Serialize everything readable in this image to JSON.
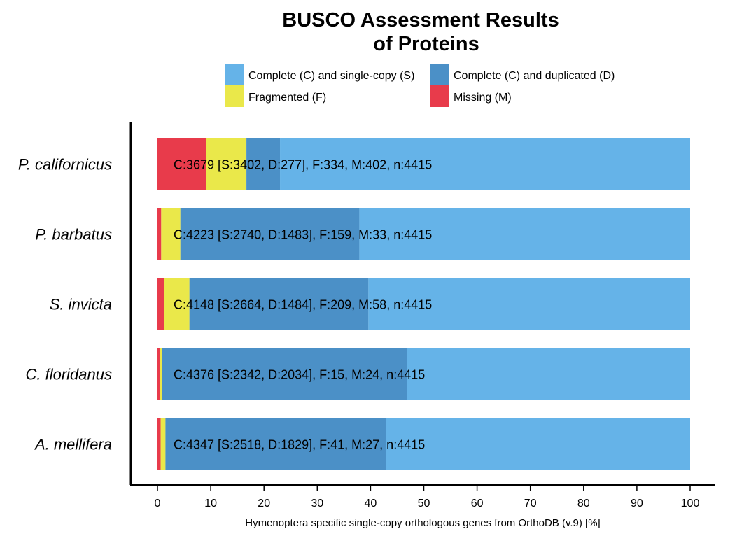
{
  "chart_data": {
    "type": "bar",
    "orientation": "horizontal",
    "stacked": true,
    "title_lines": [
      "BUSCO Assessment Results",
      "of Proteins"
    ],
    "xlabel": "Hymenoptera specific single-copy orthologous genes from OrthoDB (v.9) [%]",
    "ylabel": "",
    "xlim": [
      0,
      100
    ],
    "xticks": [
      0,
      10,
      20,
      30,
      40,
      50,
      60,
      70,
      80,
      90,
      100
    ],
    "legend_position": "top",
    "categories": [
      "P. californicus",
      "P. barbatus",
      "S. invicta",
      "C. floridanus",
      "A. mellifera"
    ],
    "series": [
      {
        "key": "M",
        "name": "Missing (M)",
        "color": "#e83b4b",
        "values": [
          9.1,
          0.7,
          1.3,
          0.5,
          0.6
        ]
      },
      {
        "key": "F",
        "name": "Fragmented (F)",
        "color": "#eae84a",
        "values": [
          7.6,
          3.6,
          4.7,
          0.3,
          0.9
        ]
      },
      {
        "key": "D",
        "name": "Complete (C) and duplicated (D)",
        "color": "#4b90c7",
        "values": [
          6.3,
          33.6,
          33.6,
          46.1,
          41.4
        ]
      },
      {
        "key": "S",
        "name": "Complete (C) and single-copy (S)",
        "color": "#65b3e8",
        "values": [
          77.0,
          62.1,
          60.4,
          53.1,
          57.1
        ]
      }
    ],
    "legend_order": [
      "S",
      "D",
      "F",
      "M"
    ],
    "bar_labels": [
      "C:3679 [S:3402, D:277], F:334, M:402, n:4415",
      "C:4223 [S:2740, D:1483], F:159, M:33, n:4415",
      "C:4148 [S:2664, D:1484], F:209, M:58, n:4415",
      "C:4376 [S:2342, D:2034], F:15, M:24, n:4415",
      "C:4347 [S:2518, D:1829], F:41, M:27, n:4415"
    ]
  }
}
